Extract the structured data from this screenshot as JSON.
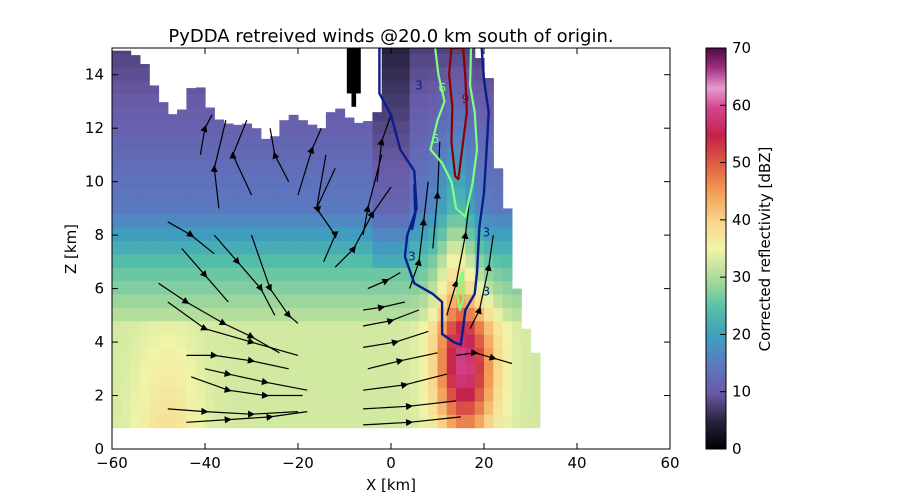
{
  "chart_data": {
    "type": "heatmap",
    "title": "PyDDA retreived winds @20.0 km south of origin.",
    "xlabel": "X [km]",
    "ylabel": "Z [km]",
    "xlim": [
      -60,
      60
    ],
    "ylim": [
      0,
      15
    ],
    "x_ticks": [
      "−60",
      "−40",
      "−20",
      "0",
      "20",
      "40",
      "60"
    ],
    "y_ticks": [
      "0",
      "2",
      "4",
      "6",
      "8",
      "10",
      "12",
      "14"
    ],
    "colorbar": {
      "label": "Corrected reflectivity [dBZ]",
      "range": [
        0,
        70
      ],
      "ticks": [
        "0",
        "10",
        "20",
        "30",
        "40",
        "50",
        "60",
        "70"
      ],
      "colormap": "spectral"
    },
    "contour_labels": [
      {
        "text": "3",
        "color": "#0a1f8c",
        "x": 6,
        "y": 13.6
      },
      {
        "text": "3",
        "color": "#0a1f8c",
        "x": 4.5,
        "y": 7.2
      },
      {
        "text": "3",
        "color": "#0a1f8c",
        "x": 20.5,
        "y": 8.1
      },
      {
        "text": "3",
        "color": "#0a1f8c",
        "x": 20.5,
        "y": 5.9
      },
      {
        "text": "6",
        "color": "#7fff7f",
        "x": 11,
        "y": 13.5
      },
      {
        "text": "6",
        "color": "#7fff7f",
        "x": 9.5,
        "y": 11.6
      },
      {
        "text": "9",
        "color": "#8b0000",
        "x": 16,
        "y": 13.1
      }
    ],
    "contours": [
      {
        "level": "updraft-3",
        "color": "#0a1f8c",
        "width": 2.4,
        "points": [
          [
            -2.5,
            15
          ],
          [
            -2.5,
            13.3
          ],
          [
            0,
            12.5
          ],
          [
            2,
            11.2
          ],
          [
            5,
            10.4
          ],
          [
            5.5,
            9
          ],
          [
            3.5,
            8
          ],
          [
            3,
            7.2
          ],
          [
            5,
            6.2
          ],
          [
            9,
            5.8
          ],
          [
            11,
            5.5
          ],
          [
            11,
            4.3
          ],
          [
            13.5,
            4
          ],
          [
            15,
            3.9
          ],
          [
            16,
            5.2
          ],
          [
            18,
            5.8
          ],
          [
            18.5,
            6.6
          ],
          [
            19,
            8.3
          ],
          [
            20,
            9.6
          ],
          [
            20.5,
            11
          ],
          [
            21,
            12.6
          ],
          [
            20,
            13.8
          ],
          [
            19.5,
            15
          ]
        ]
      },
      {
        "level": "updraft-3b",
        "color": "#0a1f8c",
        "width": 2.4,
        "points": [
          [
            5,
            9.9
          ],
          [
            5.2,
            8.8
          ],
          [
            4.5,
            8.2
          ]
        ]
      },
      {
        "level": "updraft-6",
        "color": "#7fff7f",
        "width": 2.2,
        "points": [
          [
            9.5,
            15
          ],
          [
            10.2,
            14
          ],
          [
            11.5,
            13
          ],
          [
            10,
            12.3
          ],
          [
            8.5,
            11.2
          ],
          [
            11,
            10.7
          ],
          [
            13,
            10
          ],
          [
            14,
            9
          ],
          [
            16,
            8.7
          ],
          [
            17.5,
            9.9
          ],
          [
            18.5,
            11.2
          ],
          [
            18,
            12.6
          ],
          [
            17,
            13.6
          ],
          [
            17.2,
            15
          ]
        ]
      },
      {
        "level": "updraft-6b",
        "color": "#7fff7f",
        "width": 2.2,
        "points": [
          [
            15,
            6.5
          ],
          [
            14.2,
            5.8
          ],
          [
            14.8,
            5.2
          ],
          [
            15.6,
            5.6
          ],
          [
            15.5,
            6.6
          ],
          [
            15,
            6.5
          ]
        ]
      },
      {
        "level": "updraft-9",
        "color": "#8b0000",
        "width": 2.2,
        "points": [
          [
            13,
            15
          ],
          [
            12.5,
            14
          ],
          [
            13.2,
            12.8
          ],
          [
            13,
            11.5
          ],
          [
            13.8,
            10.2
          ],
          [
            14.5,
            10.1
          ],
          [
            15.5,
            11.5
          ],
          [
            16.3,
            12.6
          ],
          [
            16,
            13.9
          ],
          [
            15.5,
            15
          ],
          [
            13,
            15
          ]
        ]
      }
    ]
  }
}
